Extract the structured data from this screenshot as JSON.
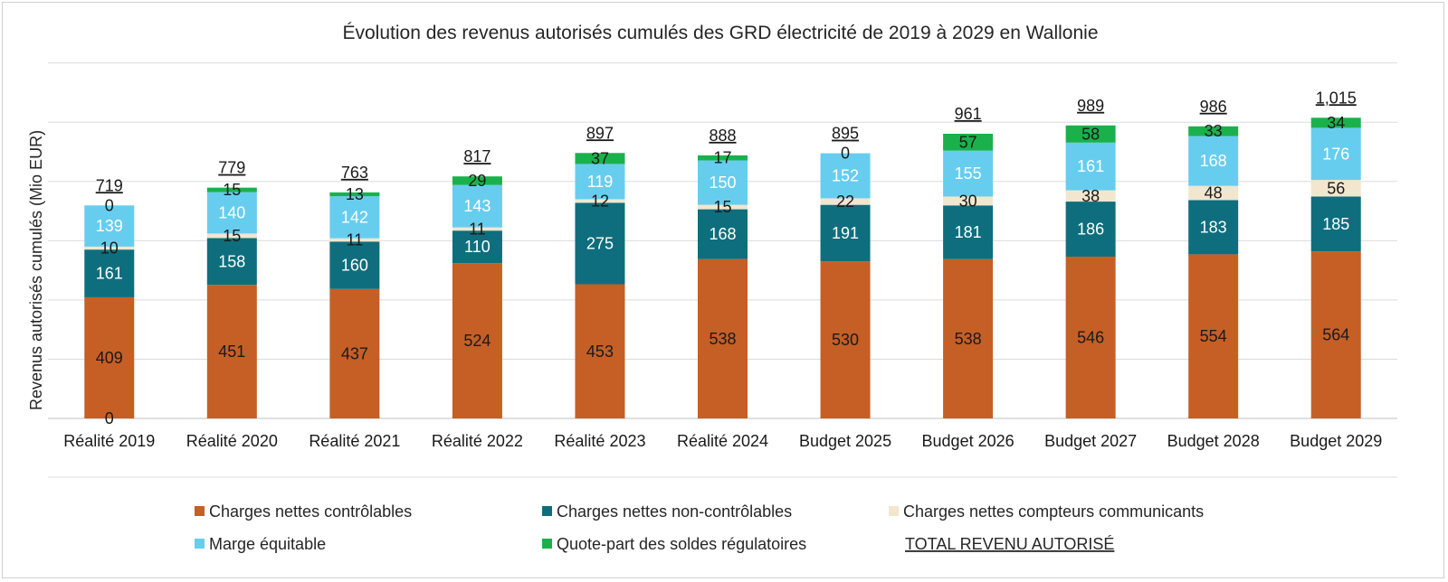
{
  "chart_data": {
    "type": "bar",
    "stacked": true,
    "title": "Évolution des revenus autorisés cumulés des GRD électricité de 2019 à 2029 en Wallonie",
    "ylabel": "Revenus autorisés cumulés (Mio EUR)",
    "xlabel": "",
    "ylim": [
      0,
      1200
    ],
    "grid": true,
    "legend_position": "bottom",
    "categories": [
      "Réalité 2019",
      "Réalité 2020",
      "Réalité 2021",
      "Réalité 2022",
      "Réalité 2023",
      "Réalité 2024",
      "Budget 2025",
      "Budget 2026",
      "Budget 2027",
      "Budget 2028",
      "Budget 2029"
    ],
    "series": [
      {
        "name": "Charges nettes contrôlables",
        "color": "#C55F26",
        "label_color": "#1a1a1a",
        "values": [
          409,
          451,
          437,
          524,
          453,
          538,
          530,
          538,
          546,
          554,
          564
        ]
      },
      {
        "name": "Charges nettes non-contrôlables",
        "color": "#0E6E7D",
        "label_color": "#ffffff",
        "values": [
          161,
          158,
          160,
          110,
          275,
          168,
          191,
          181,
          186,
          183,
          185
        ]
      },
      {
        "name": "Charges nettes compteurs communicants",
        "color": "#F2E6CE",
        "label_color": "#1a1a1a",
        "values": [
          10,
          15,
          11,
          11,
          12,
          15,
          22,
          30,
          38,
          48,
          56
        ]
      },
      {
        "name": "Marge équitable",
        "color": "#67CDEF",
        "label_color": "#ffffff",
        "values": [
          139,
          140,
          142,
          143,
          119,
          150,
          152,
          155,
          161,
          168,
          176
        ]
      },
      {
        "name": "Quote-part des soldes régulatoires",
        "color": "#1AB14C",
        "label_color": "#1a1a1a",
        "values": [
          0,
          15,
          13,
          29,
          37,
          17,
          0,
          57,
          58,
          33,
          34
        ]
      }
    ],
    "totals_name": "TOTAL REVENU AUTORISÉ",
    "totals": [
      "719",
      "779",
      "763",
      "817",
      "897",
      "888",
      "895",
      "961",
      "989",
      "986",
      "1,015"
    ]
  }
}
